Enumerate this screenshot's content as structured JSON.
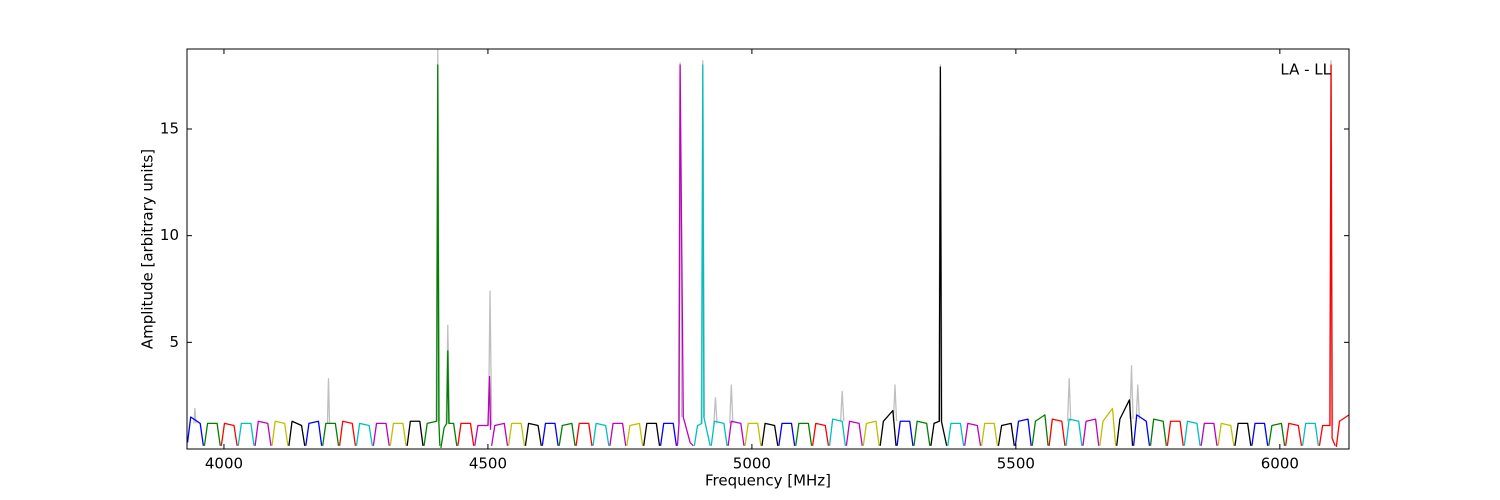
{
  "chart_data": {
    "type": "line",
    "x_label": "Frequency [MHz]",
    "y_label": "Amplitude [arbitrary units]",
    "annotation": "LA - LL",
    "xlim": [
      3930,
      6131
    ],
    "ylim": [
      0,
      18.75
    ],
    "xticks": [
      4000,
      4500,
      5000,
      5500,
      6000
    ],
    "yticks": [
      5,
      10,
      15
    ],
    "series": [
      {
        "color": "#bfbfbf",
        "x": [
          3943,
          3945,
          3947,
          null,
          4196,
          4198,
          4200,
          null,
          4402,
          4405,
          4408,
          null,
          4421,
          4424,
          4427,
          null,
          4501,
          4504,
          4507,
          null,
          4861,
          4864,
          4867,
          null,
          4904,
          4907,
          4910,
          null,
          4928,
          4931,
          4934,
          null,
          4958,
          4961,
          4964,
          null,
          5168,
          5171,
          5174,
          null,
          5268,
          5271,
          5274,
          null,
          5354,
          5357,
          5360,
          null,
          5598,
          5601,
          5604,
          null,
          5716,
          5719,
          5722,
          null,
          5728,
          5731,
          5734,
          null,
          6094,
          6097,
          6100
        ],
        "values": [
          1.2,
          1.9,
          1.2,
          null,
          1.2,
          3.3,
          1.2,
          null,
          1.3,
          18.7,
          1.3,
          null,
          1.2,
          5.8,
          1.2,
          null,
          1.1,
          7.4,
          1.1,
          null,
          1.2,
          18.1,
          1.5,
          null,
          1.2,
          18.2,
          1.5,
          null,
          1.2,
          2.4,
          1.2,
          null,
          1.2,
          3.0,
          1.2,
          null,
          1.3,
          2.7,
          1.3,
          null,
          1.3,
          3.0,
          1.3,
          null,
          1.3,
          18.0,
          1.3,
          null,
          1.3,
          3.3,
          1.3,
          null,
          1.4,
          3.9,
          1.4,
          null,
          1.4,
          3.0,
          1.4,
          null,
          1.1,
          18.2,
          1.1
        ]
      },
      {
        "color": "#0000ff",
        "x": [
          3931,
          3937,
          3955,
          3961
        ],
        "values": [
          0.3,
          1.5,
          1.2,
          0.15
        ]
      },
      {
        "color": "#008000",
        "x": [
          3963,
          3969,
          3987,
          3993
        ],
        "values": [
          0.15,
          1.2,
          1.2,
          0.15
        ]
      },
      {
        "color": "#ff0000",
        "x": [
          3995,
          4001,
          4019,
          4025
        ],
        "values": [
          0.15,
          1.2,
          1.1,
          0.15
        ]
      },
      {
        "color": "#00bfbf",
        "x": [
          4027,
          4033,
          4051,
          4057
        ],
        "values": [
          0.15,
          1.2,
          1.2,
          0.15
        ]
      },
      {
        "color": "#bf00bf",
        "x": [
          4059,
          4065,
          4083,
          4089
        ],
        "values": [
          0.15,
          1.3,
          1.2,
          0.15
        ]
      },
      {
        "color": "#bfbf00",
        "x": [
          4091,
          4097,
          4115,
          4121
        ],
        "values": [
          0.15,
          1.3,
          1.2,
          0.15
        ]
      },
      {
        "color": "#000000",
        "x": [
          4123,
          4129,
          4147,
          4153
        ],
        "values": [
          0.15,
          1.3,
          1.1,
          0.15
        ]
      },
      {
        "color": "#0000ff",
        "x": [
          4155,
          4161,
          4179,
          4185
        ],
        "values": [
          0.15,
          1.2,
          1.3,
          0.15
        ]
      },
      {
        "color": "#008000",
        "x": [
          4187,
          4193,
          4211,
          4217
        ],
        "values": [
          0.15,
          1.2,
          1.2,
          0.15
        ]
      },
      {
        "color": "#ff0000",
        "x": [
          4219,
          4225,
          4243,
          4249
        ],
        "values": [
          0.15,
          1.3,
          1.2,
          0.15
        ]
      },
      {
        "color": "#00bfbf",
        "x": [
          4251,
          4257,
          4275,
          4281
        ],
        "values": [
          0.15,
          1.2,
          1.1,
          0.15
        ]
      },
      {
        "color": "#bf00bf",
        "x": [
          4283,
          4289,
          4307,
          4313
        ],
        "values": [
          0.15,
          1.2,
          1.2,
          0.15
        ]
      },
      {
        "color": "#bfbf00",
        "x": [
          4315,
          4321,
          4339,
          4345
        ],
        "values": [
          0.15,
          1.2,
          1.2,
          0.15
        ]
      },
      {
        "color": "#000000",
        "x": [
          4347,
          4353,
          4371,
          4377
        ],
        "values": [
          0.15,
          1.3,
          1.3,
          0.15
        ]
      },
      {
        "color": "#008000",
        "x": [
          4379,
          4385,
          4403,
          4405,
          4407,
          4409
        ],
        "values": [
          0.15,
          1.2,
          1.3,
          18.0,
          1.3,
          0.15
        ]
      },
      {
        "color": "#008000",
        "x": [
          4411,
          4417,
          4422,
          4424,
          4426,
          4435,
          4441
        ],
        "values": [
          0.05,
          1.0,
          1.2,
          4.6,
          1.2,
          1.2,
          0.15
        ]
      },
      {
        "color": "#ff0000",
        "x": [
          4443,
          4449,
          4467,
          4473
        ],
        "values": [
          0.15,
          1.2,
          1.2,
          0.15
        ]
      },
      {
        "color": "#bf00bf",
        "x": [
          4475,
          4481,
          4500,
          4503,
          4505
        ],
        "values": [
          0.15,
          1.1,
          1.1,
          3.4,
          0.9
        ]
      },
      {
        "color": "#bf00bf",
        "x": [
          4507,
          4513,
          4531,
          4537
        ],
        "values": [
          0.15,
          1.1,
          1.2,
          0.15
        ]
      },
      {
        "color": "#bfbf00",
        "x": [
          4539,
          4545,
          4563,
          4569
        ],
        "values": [
          0.15,
          1.2,
          1.2,
          0.15
        ]
      },
      {
        "color": "#000000",
        "x": [
          4571,
          4577,
          4595,
          4601
        ],
        "values": [
          0.15,
          1.2,
          1.1,
          0.15
        ]
      },
      {
        "color": "#0000ff",
        "x": [
          4603,
          4609,
          4627,
          4633
        ],
        "values": [
          0.15,
          1.2,
          1.2,
          0.15
        ]
      },
      {
        "color": "#008000",
        "x": [
          4635,
          4641,
          4659,
          4665
        ],
        "values": [
          0.15,
          1.1,
          1.2,
          0.15
        ]
      },
      {
        "color": "#ff0000",
        "x": [
          4667,
          4673,
          4691,
          4697
        ],
        "values": [
          0.15,
          1.2,
          1.2,
          0.15
        ]
      },
      {
        "color": "#00bfbf",
        "x": [
          4699,
          4705,
          4723,
          4729
        ],
        "values": [
          0.15,
          1.2,
          1.1,
          0.15
        ]
      },
      {
        "color": "#bf00bf",
        "x": [
          4731,
          4737,
          4755,
          4761
        ],
        "values": [
          0.15,
          1.2,
          1.2,
          0.15
        ]
      },
      {
        "color": "#bfbf00",
        "x": [
          4763,
          4769,
          4787,
          4793
        ],
        "values": [
          0.15,
          1.1,
          1.2,
          0.15
        ]
      },
      {
        "color": "#000000",
        "x": [
          4795,
          4801,
          4819,
          4825
        ],
        "values": [
          0.15,
          1.2,
          1.2,
          0.15
        ]
      },
      {
        "color": "#0000ff",
        "x": [
          4827,
          4833,
          4851,
          4857
        ],
        "values": [
          0.15,
          1.2,
          1.2,
          0.15
        ]
      },
      {
        "color": "#bf00bf",
        "x": [
          4859,
          4862,
          4864,
          4870,
          4883,
          4889
        ],
        "values": [
          0.15,
          1.2,
          18.0,
          1.5,
          0.3,
          0.15
        ]
      },
      {
        "color": "#00bfbf",
        "x": [
          4891,
          4897,
          4905,
          4907,
          4909,
          4921
        ],
        "values": [
          0.15,
          1.1,
          1.2,
          18.0,
          1.5,
          0.15
        ]
      },
      {
        "color": "#00bfbf",
        "x": [
          4923,
          4929,
          4947,
          4953
        ],
        "values": [
          0.15,
          1.3,
          1.2,
          0.15
        ]
      },
      {
        "color": "#bf00bf",
        "x": [
          4955,
          4961,
          4979,
          4985
        ],
        "values": [
          0.15,
          1.3,
          1.2,
          0.15
        ]
      },
      {
        "color": "#bfbf00",
        "x": [
          4987,
          4993,
          5011,
          5017
        ],
        "values": [
          0.15,
          1.2,
          1.2,
          0.15
        ]
      },
      {
        "color": "#000000",
        "x": [
          5019,
          5025,
          5043,
          5049
        ],
        "values": [
          0.15,
          1.2,
          1.1,
          0.15
        ]
      },
      {
        "color": "#0000ff",
        "x": [
          5051,
          5057,
          5075,
          5081
        ],
        "values": [
          0.15,
          1.2,
          1.2,
          0.15
        ]
      },
      {
        "color": "#008000",
        "x": [
          5083,
          5089,
          5107,
          5113
        ],
        "values": [
          0.15,
          1.2,
          1.2,
          0.15
        ]
      },
      {
        "color": "#ff0000",
        "x": [
          5115,
          5121,
          5139,
          5145
        ],
        "values": [
          0.15,
          1.2,
          1.1,
          0.15
        ]
      },
      {
        "color": "#00bfbf",
        "x": [
          5147,
          5153,
          5171,
          5177
        ],
        "values": [
          0.15,
          1.4,
          1.3,
          0.15
        ]
      },
      {
        "color": "#bf00bf",
        "x": [
          5179,
          5185,
          5203,
          5209
        ],
        "values": [
          0.15,
          1.3,
          1.2,
          0.15
        ]
      },
      {
        "color": "#bfbf00",
        "x": [
          5211,
          5217,
          5235,
          5241
        ],
        "values": [
          0.15,
          1.2,
          1.3,
          0.15
        ]
      },
      {
        "color": "#000000",
        "x": [
          5243,
          5249,
          5267,
          5273
        ],
        "values": [
          0.15,
          1.3,
          1.8,
          0.15
        ]
      },
      {
        "color": "#0000ff",
        "x": [
          5275,
          5281,
          5299,
          5305
        ],
        "values": [
          0.15,
          1.3,
          1.3,
          0.15
        ]
      },
      {
        "color": "#008000",
        "x": [
          5307,
          5313,
          5331,
          5337
        ],
        "values": [
          0.15,
          1.3,
          1.2,
          0.15
        ]
      },
      {
        "color": "#000000",
        "x": [
          5339,
          5345,
          5355,
          5357,
          5359,
          5369
        ],
        "values": [
          0.15,
          1.2,
          1.3,
          17.9,
          1.3,
          0.15
        ]
      },
      {
        "color": "#00bfbf",
        "x": [
          5371,
          5377,
          5395,
          5401
        ],
        "values": [
          0.15,
          1.2,
          1.2,
          0.15
        ]
      },
      {
        "color": "#bf00bf",
        "x": [
          5403,
          5409,
          5427,
          5433
        ],
        "values": [
          0.15,
          1.2,
          1.1,
          0.15
        ]
      },
      {
        "color": "#bfbf00",
        "x": [
          5435,
          5441,
          5459,
          5465
        ],
        "values": [
          0.15,
          1.2,
          1.2,
          0.15
        ]
      },
      {
        "color": "#000000",
        "x": [
          5467,
          5473,
          5491,
          5497
        ],
        "values": [
          0.15,
          1.1,
          1.2,
          0.15
        ]
      },
      {
        "color": "#0000ff",
        "x": [
          5499,
          5505,
          5523,
          5529
        ],
        "values": [
          0.15,
          1.3,
          1.4,
          0.15
        ]
      },
      {
        "color": "#008000",
        "x": [
          5531,
          5537,
          5555,
          5561
        ],
        "values": [
          0.15,
          1.3,
          1.6,
          0.15
        ]
      },
      {
        "color": "#ff0000",
        "x": [
          5563,
          5569,
          5587,
          5593
        ],
        "values": [
          0.15,
          1.4,
          1.3,
          0.15
        ]
      },
      {
        "color": "#00bfbf",
        "x": [
          5595,
          5601,
          5619,
          5625
        ],
        "values": [
          0.15,
          1.4,
          1.3,
          0.15
        ]
      },
      {
        "color": "#bf00bf",
        "x": [
          5627,
          5633,
          5651,
          5657
        ],
        "values": [
          0.15,
          1.3,
          1.4,
          0.15
        ]
      },
      {
        "color": "#bfbf00",
        "x": [
          5659,
          5665,
          5683,
          5689
        ],
        "values": [
          0.15,
          1.3,
          1.9,
          0.15
        ]
      },
      {
        "color": "#000000",
        "x": [
          5691,
          5697,
          5715,
          5721
        ],
        "values": [
          0.15,
          1.4,
          2.3,
          0.15
        ]
      },
      {
        "color": "#0000ff",
        "x": [
          5723,
          5729,
          5747,
          5753
        ],
        "values": [
          0.15,
          1.6,
          1.3,
          0.15
        ]
      },
      {
        "color": "#008000",
        "x": [
          5755,
          5761,
          5779,
          5785
        ],
        "values": [
          0.15,
          1.4,
          1.3,
          0.15
        ]
      },
      {
        "color": "#ff0000",
        "x": [
          5787,
          5793,
          5811,
          5817
        ],
        "values": [
          0.15,
          1.3,
          1.3,
          0.15
        ]
      },
      {
        "color": "#00bfbf",
        "x": [
          5819,
          5825,
          5843,
          5849
        ],
        "values": [
          0.15,
          1.3,
          1.2,
          0.15
        ]
      },
      {
        "color": "#bf00bf",
        "x": [
          5851,
          5857,
          5875,
          5881
        ],
        "values": [
          0.15,
          1.2,
          1.2,
          0.15
        ]
      },
      {
        "color": "#bfbf00",
        "x": [
          5883,
          5889,
          5907,
          5913
        ],
        "values": [
          0.15,
          1.2,
          1.1,
          0.15
        ]
      },
      {
        "color": "#000000",
        "x": [
          5915,
          5921,
          5939,
          5945
        ],
        "values": [
          0.15,
          1.2,
          1.2,
          0.15
        ]
      },
      {
        "color": "#0000ff",
        "x": [
          5947,
          5953,
          5971,
          5977
        ],
        "values": [
          0.15,
          1.2,
          1.2,
          0.15
        ]
      },
      {
        "color": "#008000",
        "x": [
          5979,
          5985,
          6003,
          6009
        ],
        "values": [
          0.15,
          1.1,
          1.2,
          0.15
        ]
      },
      {
        "color": "#ff0000",
        "x": [
          6011,
          6017,
          6035,
          6041
        ],
        "values": [
          0.15,
          1.2,
          1.1,
          0.15
        ]
      },
      {
        "color": "#00bfbf",
        "x": [
          6043,
          6049,
          6067,
          6073
        ],
        "values": [
          0.15,
          1.2,
          1.2,
          0.15
        ]
      },
      {
        "color": "#ff0000",
        "x": [
          6075,
          6081,
          6095,
          6097,
          6099,
          6105
        ],
        "values": [
          0.15,
          1.1,
          1.1,
          18.0,
          0.5,
          0.15
        ]
      },
      {
        "color": "#ff0000",
        "x": [
          6107,
          6113,
          6131
        ],
        "values": [
          0.1,
          1.3,
          1.6
        ]
      }
    ]
  }
}
